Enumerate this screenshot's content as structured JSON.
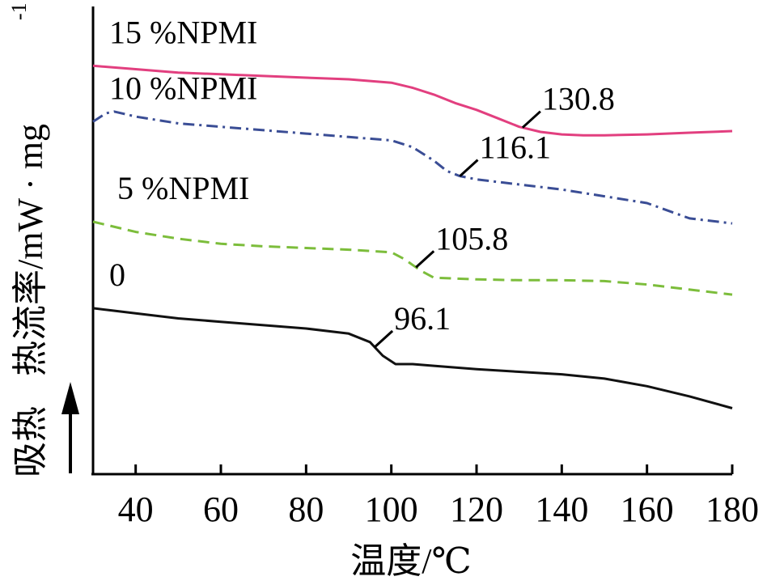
{
  "chart_data": {
    "type": "line",
    "xlabel": "温度/℃",
    "ylabel_endo": "吸热",
    "ylabel_main": "热流率/mW · mg",
    "ylabel_sup": "-1",
    "xlim": [
      30,
      180
    ],
    "xticks": [
      40,
      60,
      80,
      100,
      120,
      140,
      160,
      180
    ],
    "xtick_labels": [
      "40",
      "60",
      "80",
      "100",
      "120",
      "140",
      "160",
      "180"
    ],
    "series": [
      {
        "name": "15 %NPMI",
        "color": "#e23f7f",
        "dash": "solid",
        "x": [
          30,
          40,
          50,
          60,
          70,
          80,
          90,
          100,
          105,
          110,
          115,
          120,
          125,
          130,
          135,
          140,
          145,
          150,
          160,
          170,
          180
        ],
        "y": [
          8.2,
          8.0,
          7.8,
          7.7,
          7.6,
          7.5,
          7.4,
          7.2,
          6.9,
          6.5,
          6.0,
          5.6,
          5.1,
          4.6,
          4.3,
          4.15,
          4.1,
          4.1,
          4.15,
          4.25,
          4.35
        ],
        "transition": {
          "x": 130.8,
          "label": "130.8"
        }
      },
      {
        "name": "10 %NPMI",
        "color": "#3a4d95",
        "dash": "dashdot",
        "x": [
          30,
          33,
          35,
          40,
          50,
          60,
          70,
          80,
          90,
          100,
          105,
          110,
          113,
          116,
          120,
          130,
          140,
          150,
          160,
          170,
          180
        ],
        "y": [
          4.9,
          5.4,
          5.5,
          5.2,
          4.8,
          4.6,
          4.4,
          4.2,
          4.0,
          3.8,
          3.4,
          2.6,
          2.0,
          1.7,
          1.5,
          1.2,
          0.9,
          0.5,
          0.1,
          -0.8,
          -1.1
        ],
        "transition": {
          "x": 116.1,
          "label": "116.1"
        }
      },
      {
        "name": "5 %NPMI",
        "color": "#7cbd3b",
        "dash": "dashed",
        "x": [
          30,
          40,
          50,
          60,
          70,
          80,
          90,
          100,
          103,
          107,
          110,
          120,
          130,
          140,
          150,
          160,
          170,
          180
        ],
        "y": [
          -1.0,
          -1.6,
          -2.0,
          -2.3,
          -2.45,
          -2.55,
          -2.65,
          -2.8,
          -3.2,
          -3.9,
          -4.3,
          -4.4,
          -4.45,
          -4.45,
          -4.5,
          -4.7,
          -5.0,
          -5.3
        ],
        "transition": {
          "x": 105.8,
          "label": "105.8"
        }
      },
      {
        "name": "0",
        "color": "#111111",
        "dash": "solid",
        "x": [
          30,
          40,
          50,
          60,
          70,
          80,
          90,
          95,
          98,
          101,
          105,
          110,
          120,
          130,
          140,
          150,
          160,
          170,
          180
        ],
        "y": [
          -6.1,
          -6.4,
          -6.7,
          -6.9,
          -7.1,
          -7.3,
          -7.6,
          -8.1,
          -8.9,
          -9.4,
          -9.4,
          -9.5,
          -9.7,
          -9.85,
          -10.0,
          -10.25,
          -10.7,
          -11.3,
          -12.0
        ],
        "transition": {
          "x": 96.1,
          "label": "96.1"
        }
      }
    ]
  }
}
